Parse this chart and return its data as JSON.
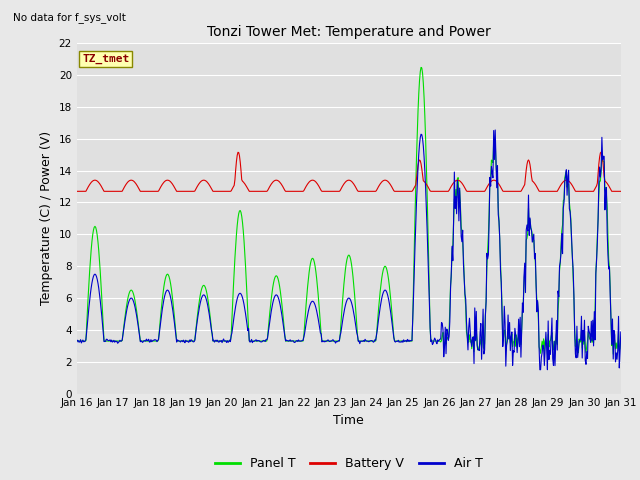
{
  "title": "Tonzi Tower Met: Temperature and Power",
  "xlabel": "Time",
  "ylabel": "Temperature (C) / Power (V)",
  "no_data_text": "No data for f_sys_volt",
  "legend_label_text": "TZ_tmet",
  "ylim": [
    0,
    22
  ],
  "yticks": [
    0,
    2,
    4,
    6,
    8,
    10,
    12,
    14,
    16,
    18,
    20,
    22
  ],
  "xtick_labels": [
    "Jan 16",
    "Jan 17",
    "Jan 18",
    "Jan 19",
    "Jan 20",
    "Jan 21",
    "Jan 22",
    "Jan 23",
    "Jan 24",
    "Jan 25",
    "Jan 26",
    "Jan 27",
    "Jan 28",
    "Jan 29",
    "Jan 30",
    "Jan 31"
  ],
  "panel_color": "#00dd00",
  "battery_color": "#dd0000",
  "air_color": "#0000cc",
  "fig_bg_color": "#e8e8e8",
  "plot_bg_color": "#e0e0e0",
  "grid_color": "#ffffff",
  "legend_items": [
    "Panel T",
    "Battery V",
    "Air T"
  ],
  "legend_colors": [
    "#00dd00",
    "#dd0000",
    "#0000cc"
  ],
  "figsize": [
    6.4,
    4.8
  ],
  "dpi": 100
}
